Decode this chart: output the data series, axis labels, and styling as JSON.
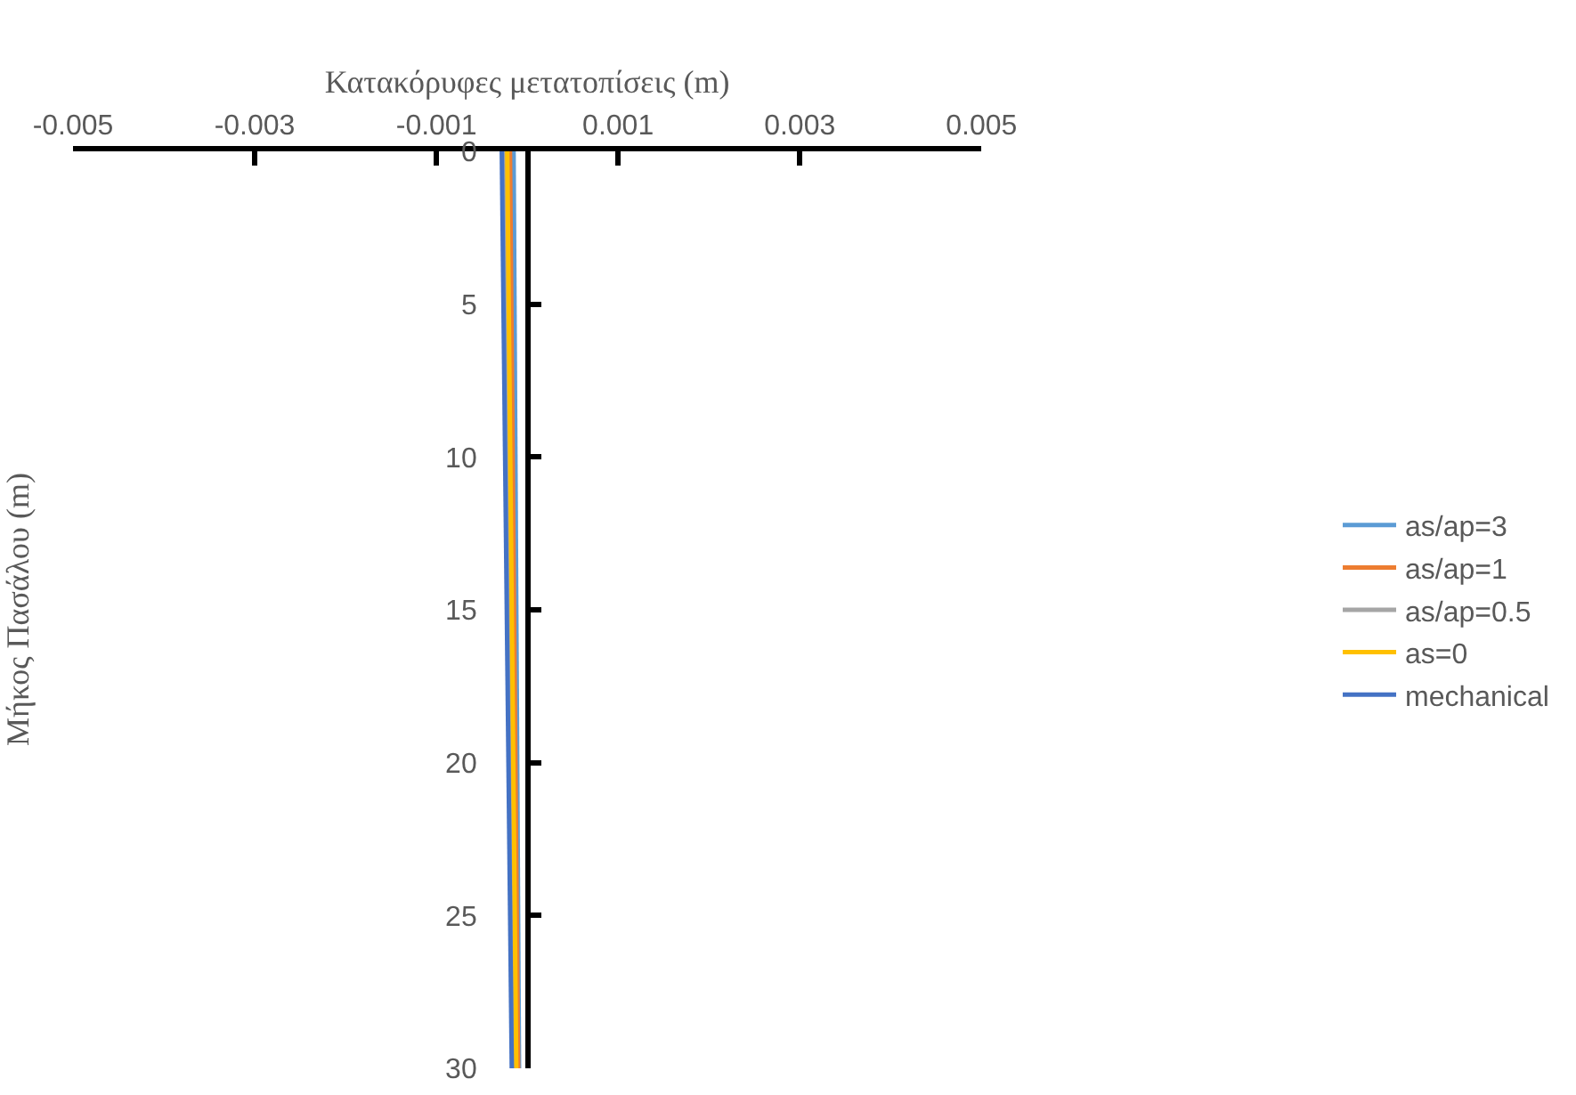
{
  "chart_data": {
    "type": "line",
    "xlabel": "Κατακόρυφες μετατοπίσεις (m)",
    "ylabel": "Μήκος Πασάλου (m)",
    "xlim": [
      -0.005,
      0.005
    ],
    "xticks": [
      -0.005,
      -0.003,
      -0.001,
      0.001,
      0.003,
      0.005
    ],
    "ylim": [
      30,
      0
    ],
    "yticks": [
      0,
      5,
      10,
      15,
      20,
      25,
      30
    ],
    "grid": false,
    "legend": "right",
    "marker": "none",
    "line_style": "solid",
    "series": [
      {
        "name": "as/ap=3",
        "color": "#5b9bd5",
        "x": [
          -0.00015,
          -9e-05
        ],
        "values": [
          0,
          30
        ]
      },
      {
        "name": "as/ap=1",
        "color": "#ed7d31",
        "x": [
          -0.00019,
          -0.0001
        ],
        "values": [
          0,
          30
        ]
      },
      {
        "name": "as/ap=0.5",
        "color": "#a5a5a5",
        "x": [
          -0.00025,
          -0.00014
        ],
        "values": [
          0,
          30
        ]
      },
      {
        "name": "as=0",
        "color": "#ffc000",
        "x": [
          -0.00022,
          -0.00012
        ],
        "values": [
          0,
          30
        ]
      },
      {
        "name": "mechanical",
        "color": "#4472c4",
        "x": [
          -0.00028,
          -0.00017
        ],
        "values": [
          0,
          30
        ]
      }
    ]
  }
}
